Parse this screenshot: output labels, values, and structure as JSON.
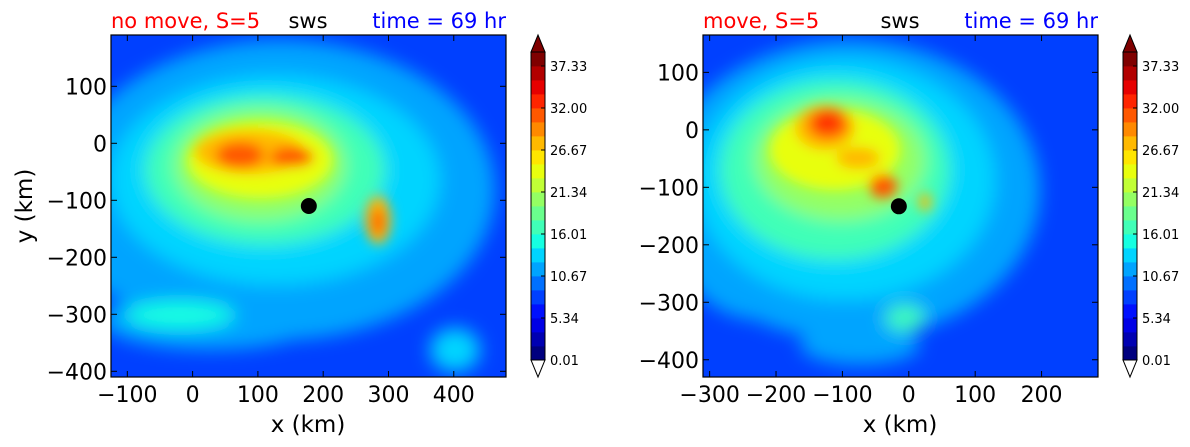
{
  "colorbar": {
    "ticks": [
      "37.33",
      "32.00",
      "26.67",
      "21.34",
      "16.01",
      "10.67",
      "5.34",
      "0.01"
    ],
    "colors": [
      "#00007f",
      "#0000b2",
      "#0000e5",
      "#0010ff",
      "#0040ff",
      "#0070ff",
      "#00a4ff",
      "#00d4ff",
      "#16ffe1",
      "#40ffb7",
      "#6aff8d",
      "#94ff63",
      "#c1ff36",
      "#e8ff0e",
      "#ffe600",
      "#ffb900",
      "#ff8900",
      "#ff5800",
      "#ff2500",
      "#e60000",
      "#b20000",
      "#7f0000"
    ]
  },
  "chart_data": [
    {
      "type": "heatmap",
      "title_left": "no move, S=5",
      "title_center": "sws",
      "title_right": "time = 69 hr",
      "xlabel": "x (km)",
      "ylabel": "y (km)",
      "xlim": [
        -125,
        480
      ],
      "ylim": [
        -410,
        190
      ],
      "xticks": [
        "−100",
        "0",
        "100",
        "200",
        "300",
        "400"
      ],
      "yticks": [
        "100",
        "0",
        "−100",
        "−200",
        "−300",
        "−400"
      ],
      "center_marker": {
        "x": 178,
        "y": -110
      }
    },
    {
      "type": "heatmap",
      "title_left": "move, S=5",
      "title_center": "sws",
      "title_right": "time = 69 hr",
      "xlabel": "x (km)",
      "ylabel": "",
      "xlim": [
        -310,
        285
      ],
      "ylim": [
        -430,
        165
      ],
      "xticks": [
        "−300",
        "−200",
        "−100",
        "0",
        "100",
        "200"
      ],
      "yticks": [
        "100",
        "0",
        "−100",
        "−200",
        "−300",
        "−400"
      ],
      "center_marker": {
        "x": -15,
        "y": -133
      }
    }
  ]
}
